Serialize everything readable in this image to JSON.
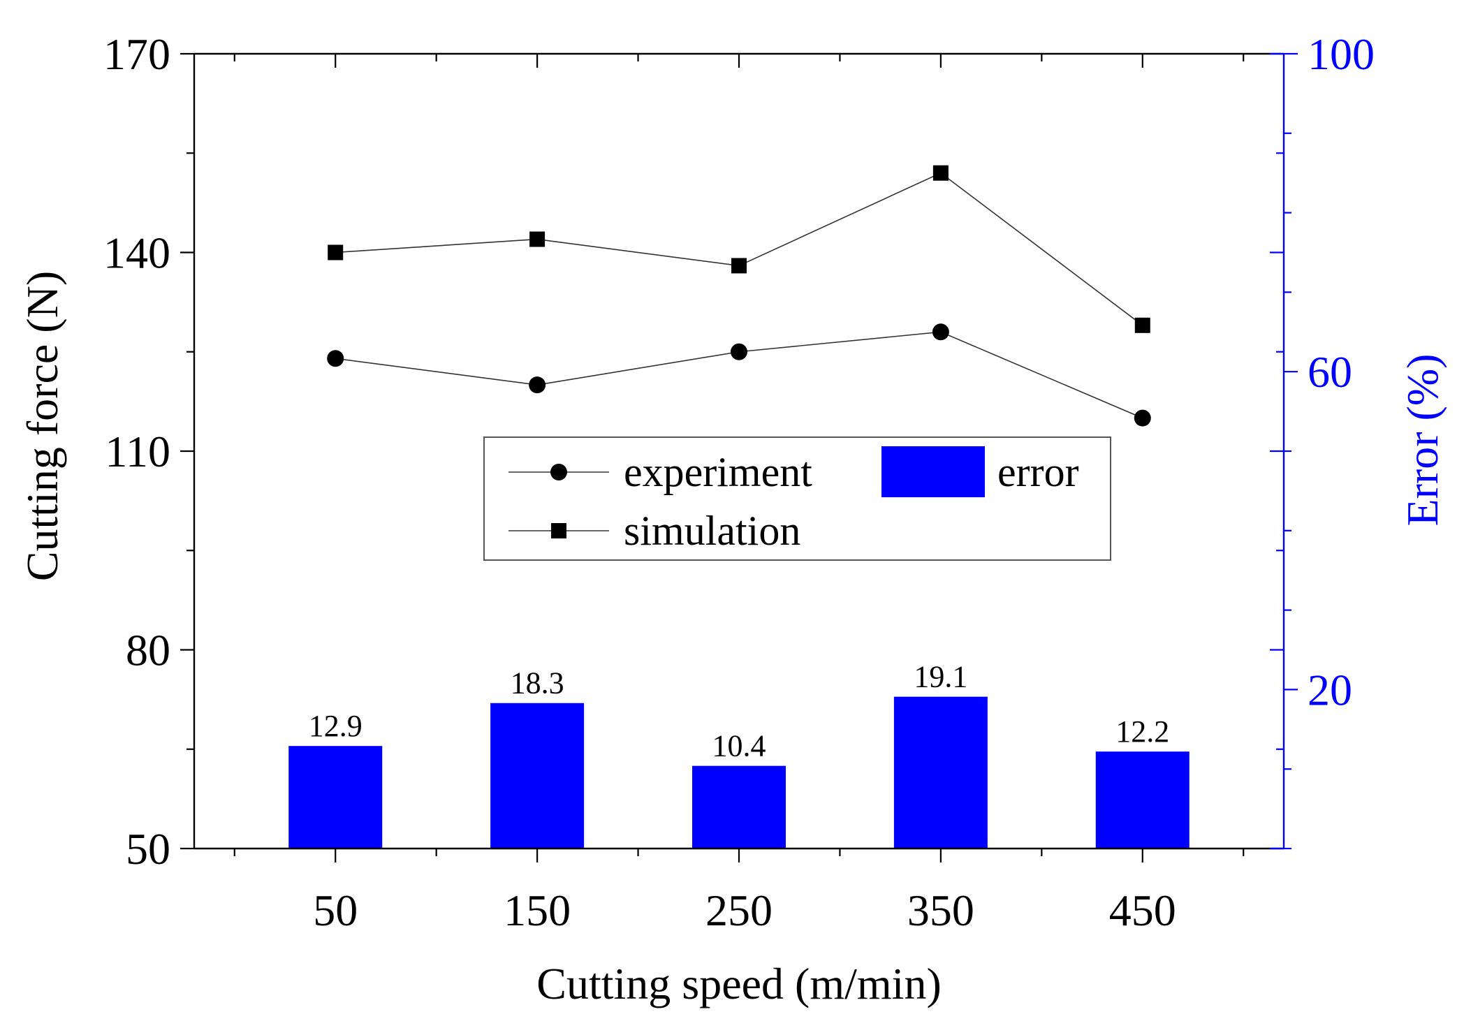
{
  "chart_data": {
    "type": "bar+line",
    "title": "",
    "xlabel": "Cutting speed (m/min)",
    "ylabel": "Cutting force (N)",
    "y2label": "Error (%)",
    "categories": [
      50,
      150,
      250,
      350,
      450
    ],
    "x_tick_labels": [
      "50",
      "150",
      "250",
      "350",
      "450"
    ],
    "xlim": [
      -20,
      520
    ],
    "ylim": [
      50,
      170
    ],
    "y_ticks": [
      50,
      80,
      110,
      140,
      170
    ],
    "y_tick_labels": [
      "50",
      "80",
      "110",
      "140",
      "170"
    ],
    "y2lim": [
      0,
      100
    ],
    "y2_ticks": [
      20,
      60,
      100
    ],
    "y2_tick_labels": [
      "20",
      "60",
      "100"
    ],
    "series": [
      {
        "name": "experiment",
        "type": "line",
        "marker": "circle",
        "axis": "left",
        "values": [
          124,
          120,
          125,
          128,
          115
        ]
      },
      {
        "name": "simulation",
        "type": "line",
        "marker": "square",
        "axis": "left",
        "values": [
          140,
          142,
          138,
          152,
          129
        ]
      },
      {
        "name": "error",
        "type": "bar",
        "axis": "right",
        "values": [
          12.9,
          18.3,
          10.4,
          19.1,
          12.2
        ],
        "data_labels": [
          "12.9",
          "18.3",
          "10.4",
          "19.1",
          "12.2"
        ]
      }
    ],
    "legend": {
      "position": "center",
      "entries": [
        "experiment",
        "simulation",
        "error"
      ]
    },
    "colors": {
      "line": "#333333",
      "marker": "#000000",
      "bar": "#0000ff",
      "right_axis": "#0000ff"
    }
  }
}
